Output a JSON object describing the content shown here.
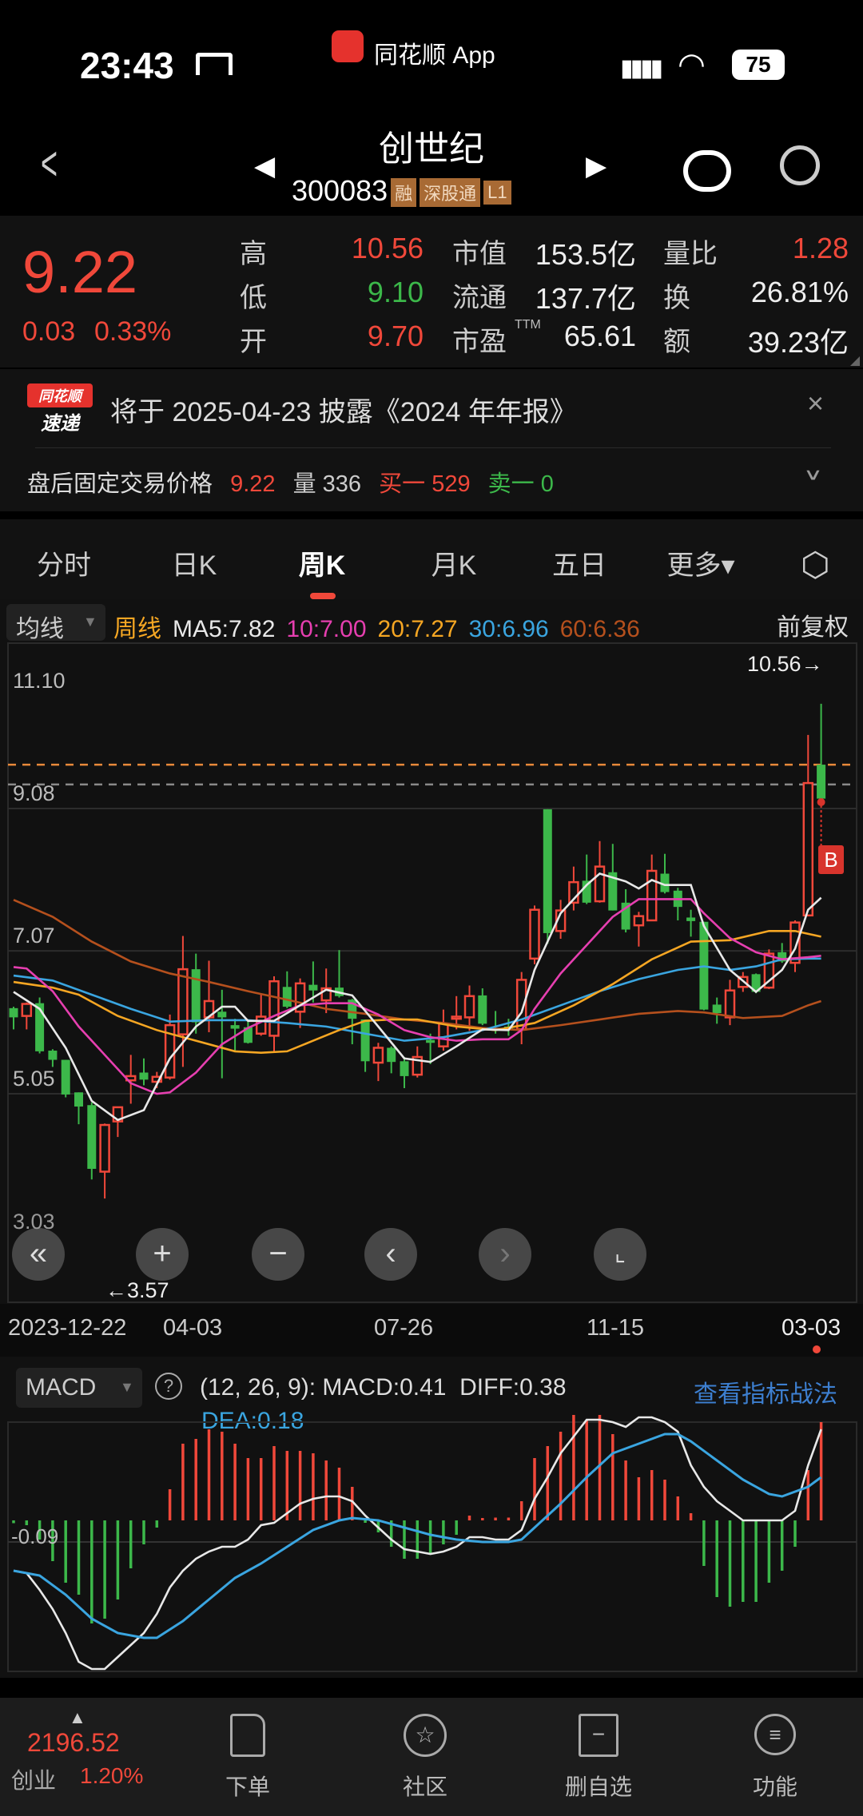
{
  "status_bar": {
    "time": "23:43",
    "app_name": "同花顺 App",
    "battery": "75"
  },
  "header": {
    "stock_name": "创世纪",
    "stock_code": "300083",
    "badges": [
      "融",
      "深股通",
      "L1"
    ]
  },
  "quote": {
    "price": "9.22",
    "change": "0.03",
    "change_pct": "0.33%",
    "high_label": "高",
    "high": "10.56",
    "low_label": "低",
    "low": "9.10",
    "open_label": "开",
    "open": "9.70",
    "mcap_label": "市值",
    "mcap": "153.5亿",
    "float_label": "流通",
    "float": "137.7亿",
    "pe_label": "市盈",
    "pe_sup": "TTM",
    "pe": "65.61",
    "vol_ratio_label": "量比",
    "vol_ratio": "1.28",
    "turnover_label": "换",
    "turnover": "26.81%",
    "amount_label": "额",
    "amount": "39.23亿"
  },
  "notice": {
    "logo_top": "同花顺",
    "logo_bottom": "速递",
    "text": "将于 2025-04-23 披露《2024 年年报》"
  },
  "after_hours": {
    "label": "盘后固定交易价格",
    "price": "9.22",
    "vol_label": "量",
    "vol": "336",
    "buy_label": "买一",
    "buy": "529",
    "sell_label": "卖一",
    "sell": "0"
  },
  "tabs": [
    {
      "label": "分时"
    },
    {
      "label": "日K"
    },
    {
      "label": "周K",
      "active": true
    },
    {
      "label": "月K"
    },
    {
      "label": "五日"
    },
    {
      "label": "更多▾"
    }
  ],
  "ma_legend": {
    "selector": "均线",
    "period": "周线",
    "ma5": "MA5:7.82",
    "ma10": "10:7.00",
    "ma20": "20:7.27",
    "ma30": "30:6.96",
    "ma60": "60:6.36",
    "adjust": "前复权"
  },
  "colors": {
    "up": "#f0483a",
    "down": "#3cb84a",
    "ma5": "#e8e8e8",
    "ma10": "#e63fb0",
    "ma20": "#f5a623",
    "ma30": "#3aa5e0",
    "ma60": "#b5501d",
    "link": "#3d7fd0"
  },
  "chart_data": {
    "type": "candlestick",
    "period": "weekly",
    "y_ticks": [
      "11.10",
      "9.08",
      "7.07",
      "5.05",
      "3.03"
    ],
    "ylim": [
      3.03,
      11.1
    ],
    "x_ticks": [
      "2023-12-22",
      "04-03",
      "07-26",
      "11-15",
      "03-03"
    ],
    "max_label": "10.56→",
    "min_label": "←3.57",
    "signal_marker": "B",
    "reference_lines": [
      9.7,
      9.42
    ],
    "candles": [
      [
        6.26,
        6.28,
        5.96,
        6.13
      ],
      [
        6.15,
        6.34,
        5.96,
        6.32
      ],
      [
        6.33,
        6.41,
        5.62,
        5.65
      ],
      [
        5.66,
        5.68,
        5.43,
        5.53
      ],
      [
        5.53,
        5.53,
        5.0,
        5.04
      ],
      [
        5.07,
        5.07,
        4.62,
        4.87
      ],
      [
        4.89,
        4.93,
        3.84,
        3.99
      ],
      [
        3.95,
        4.63,
        3.57,
        4.61
      ],
      [
        4.66,
        4.87,
        4.44,
        4.86
      ],
      [
        5.24,
        5.6,
        4.91,
        5.3
      ],
      [
        5.35,
        5.55,
        5.17,
        5.25
      ],
      [
        5.22,
        5.36,
        5.13,
        5.29
      ],
      [
        5.28,
        6.17,
        5.25,
        6.02
      ],
      [
        5.89,
        7.28,
        5.43,
        6.81
      ],
      [
        6.81,
        7.03,
        5.9,
        6.06
      ],
      [
        6.13,
        6.93,
        5.92,
        6.36
      ],
      [
        6.21,
        6.52,
        5.27,
        6.13
      ],
      [
        6.02,
        6.11,
        5.66,
        5.97
      ],
      [
        5.99,
        6.1,
        5.76,
        5.77
      ],
      [
        5.9,
        6.45,
        5.87,
        6.14
      ],
      [
        5.87,
        6.71,
        5.64,
        6.64
      ],
      [
        6.56,
        6.78,
        6.26,
        6.28
      ],
      [
        6.21,
        6.68,
        5.98,
        6.61
      ],
      [
        6.59,
        6.92,
        6.34,
        6.51
      ],
      [
        6.37,
        6.82,
        6.19,
        6.54
      ],
      [
        6.55,
        7.08,
        6.41,
        6.43
      ],
      [
        6.38,
        6.39,
        5.75,
        6.11
      ],
      [
        6.1,
        6.1,
        5.36,
        5.51
      ],
      [
        5.49,
        5.77,
        5.23,
        5.7
      ],
      [
        5.7,
        5.72,
        5.34,
        5.5
      ],
      [
        5.51,
        5.57,
        5.13,
        5.3
      ],
      [
        5.32,
        5.72,
        5.28,
        5.57
      ],
      [
        5.81,
        5.9,
        5.47,
        5.77
      ],
      [
        5.72,
        6.24,
        5.66,
        6.04
      ],
      [
        6.11,
        6.43,
        5.96,
        6.14
      ],
      [
        6.13,
        6.58,
        5.94,
        6.43
      ],
      [
        6.44,
        6.54,
        6.02,
        6.04
      ],
      [
        5.97,
        6.22,
        5.9,
        5.96
      ],
      [
        6.0,
        6.11,
        5.87,
        5.96
      ],
      [
        5.96,
        6.77,
        5.75,
        6.66
      ],
      [
        6.96,
        7.71,
        6.88,
        7.65
      ],
      [
        9.07,
        9.07,
        7.17,
        7.32
      ],
      [
        7.35,
        7.79,
        7.24,
        7.64
      ],
      [
        7.75,
        8.26,
        7.64,
        8.04
      ],
      [
        8.06,
        8.43,
        7.73,
        7.75
      ],
      [
        7.77,
        8.62,
        7.75,
        8.26
      ],
      [
        8.18,
        8.58,
        7.64,
        7.64
      ],
      [
        7.75,
        7.94,
        7.33,
        7.37
      ],
      [
        7.43,
        7.62,
        7.13,
        7.56
      ],
      [
        7.5,
        8.43,
        7.49,
        8.2
      ],
      [
        8.16,
        8.44,
        7.88,
        7.9
      ],
      [
        7.92,
        7.96,
        7.5,
        7.69
      ],
      [
        7.54,
        7.65,
        7.27,
        7.49
      ],
      [
        7.48,
        7.48,
        6.23,
        6.24
      ],
      [
        6.31,
        6.41,
        6.04,
        6.19
      ],
      [
        6.13,
        6.66,
        6.02,
        6.51
      ],
      [
        6.56,
        6.77,
        6.49,
        6.7
      ],
      [
        6.74,
        6.75,
        6.47,
        6.49
      ],
      [
        6.55,
        7.09,
        6.53,
        7.03
      ],
      [
        7.05,
        7.18,
        6.9,
        6.92
      ],
      [
        6.9,
        7.5,
        6.77,
        7.47
      ],
      [
        7.57,
        10.12,
        7.57,
        9.44
      ],
      [
        9.7,
        10.56,
        9.1,
        9.22
      ]
    ],
    "ma_lines": {
      "ma5": [
        [
          0,
          6.49
        ],
        [
          2,
          6.25
        ],
        [
          4,
          5.7
        ],
        [
          6,
          4.95
        ],
        [
          8,
          4.68
        ],
        [
          10,
          4.82
        ],
        [
          12,
          5.55
        ],
        [
          14,
          6.0
        ],
        [
          16,
          6.28
        ],
        [
          17,
          6.28
        ],
        [
          18,
          6.08
        ],
        [
          20,
          6.08
        ],
        [
          22,
          6.3
        ],
        [
          24,
          6.52
        ],
        [
          26,
          6.44
        ],
        [
          28,
          6.0
        ],
        [
          30,
          5.55
        ],
        [
          32,
          5.5
        ],
        [
          34,
          5.72
        ],
        [
          36,
          5.96
        ],
        [
          38,
          5.95
        ],
        [
          39,
          6.2
        ],
        [
          40,
          6.8
        ],
        [
          42,
          7.6
        ],
        [
          44,
          8.0
        ],
        [
          45,
          8.16
        ],
        [
          47,
          8.05
        ],
        [
          48,
          7.95
        ],
        [
          49,
          8.07
        ],
        [
          50,
          8.0
        ],
        [
          52,
          8.0
        ],
        [
          53,
          7.42
        ],
        [
          55,
          6.8
        ],
        [
          57,
          6.49
        ],
        [
          59,
          6.8
        ],
        [
          60,
          7.1
        ],
        [
          61,
          7.65
        ],
        [
          62,
          7.82
        ]
      ],
      "ma10": [
        [
          0,
          6.84
        ],
        [
          1,
          6.82
        ],
        [
          3,
          6.5
        ],
        [
          5,
          6.0
        ],
        [
          7,
          5.6
        ],
        [
          9,
          5.2
        ],
        [
          11,
          5.05
        ],
        [
          12,
          5.07
        ],
        [
          14,
          5.35
        ],
        [
          16,
          5.75
        ],
        [
          18,
          5.98
        ],
        [
          20,
          6.15
        ],
        [
          22,
          6.3
        ],
        [
          24,
          6.33
        ],
        [
          26,
          6.33
        ],
        [
          28,
          6.17
        ],
        [
          30,
          5.95
        ],
        [
          32,
          5.85
        ],
        [
          34,
          5.8
        ],
        [
          36,
          5.82
        ],
        [
          38,
          5.82
        ],
        [
          39,
          5.95
        ],
        [
          40,
          6.25
        ],
        [
          42,
          6.75
        ],
        [
          44,
          7.15
        ],
        [
          46,
          7.55
        ],
        [
          48,
          7.8
        ],
        [
          50,
          7.8
        ],
        [
          52,
          7.8
        ],
        [
          53,
          7.6
        ],
        [
          55,
          7.25
        ],
        [
          57,
          7.05
        ],
        [
          59,
          6.95
        ],
        [
          61,
          6.98
        ],
        [
          62,
          7.0
        ]
      ],
      "ma20": [
        [
          0,
          6.63
        ],
        [
          3,
          6.55
        ],
        [
          5,
          6.45
        ],
        [
          8,
          6.15
        ],
        [
          11,
          5.95
        ],
        [
          14,
          5.8
        ],
        [
          17,
          5.65
        ],
        [
          19,
          5.63
        ],
        [
          21,
          5.65
        ],
        [
          23,
          5.8
        ],
        [
          25,
          5.95
        ],
        [
          27,
          6.08
        ],
        [
          29,
          6.1
        ],
        [
          31,
          6.1
        ],
        [
          34,
          6.0
        ],
        [
          37,
          5.95
        ],
        [
          40,
          6.05
        ],
        [
          43,
          6.3
        ],
        [
          46,
          6.6
        ],
        [
          49,
          6.95
        ],
        [
          52,
          7.2
        ],
        [
          55,
          7.22
        ],
        [
          58,
          7.35
        ],
        [
          60,
          7.35
        ],
        [
          62,
          7.27
        ]
      ],
      "ma30": [
        [
          0,
          6.72
        ],
        [
          3,
          6.65
        ],
        [
          6,
          6.45
        ],
        [
          9,
          6.25
        ],
        [
          12,
          6.07
        ],
        [
          15,
          6.09
        ],
        [
          18,
          6.09
        ],
        [
          21,
          6.05
        ],
        [
          24,
          6.0
        ],
        [
          27,
          5.9
        ],
        [
          30,
          5.8
        ],
        [
          33,
          5.85
        ],
        [
          36,
          5.95
        ],
        [
          39,
          6.1
        ],
        [
          42,
          6.3
        ],
        [
          45,
          6.5
        ],
        [
          48,
          6.67
        ],
        [
          51,
          6.8
        ],
        [
          53,
          6.85
        ],
        [
          55,
          6.8
        ],
        [
          57,
          6.85
        ],
        [
          59,
          6.95
        ],
        [
          61,
          6.96
        ],
        [
          62,
          6.96
        ]
      ],
      "ma60": [
        [
          0,
          7.79
        ],
        [
          3,
          7.55
        ],
        [
          6,
          7.2
        ],
        [
          9,
          6.92
        ],
        [
          12,
          6.75
        ],
        [
          15,
          6.63
        ],
        [
          18,
          6.5
        ],
        [
          21,
          6.38
        ],
        [
          24,
          6.25
        ],
        [
          27,
          6.18
        ],
        [
          30,
          6.1
        ],
        [
          33,
          6.05
        ],
        [
          36,
          5.98
        ],
        [
          39,
          5.95
        ],
        [
          42,
          6.02
        ],
        [
          45,
          6.1
        ],
        [
          48,
          6.18
        ],
        [
          51,
          6.22
        ],
        [
          53,
          6.2
        ],
        [
          56,
          6.12
        ],
        [
          59,
          6.15
        ],
        [
          61,
          6.3
        ],
        [
          62,
          6.36
        ]
      ]
    }
  },
  "macd": {
    "selector": "MACD",
    "params": "(12, 26, 9): MACD:0.41  DIFF:0.38",
    "dea_label": "DEA:0.18",
    "y_tick": "-0.09",
    "link": "查看指标战法",
    "chart_data": {
      "type": "bar+line",
      "histogram": [
        -0.005,
        -0.02,
        -0.08,
        -0.17,
        -0.26,
        -0.31,
        -0.43,
        -0.41,
        -0.33,
        -0.2,
        -0.1,
        -0.03,
        0.13,
        0.32,
        0.34,
        0.38,
        0.37,
        0.32,
        0.26,
        0.26,
        0.31,
        0.29,
        0.29,
        0.28,
        0.25,
        0.22,
        0.14,
        -0.01,
        -0.05,
        -0.11,
        -0.16,
        -0.16,
        -0.14,
        -0.1,
        -0.06,
        0.02,
        0.01,
        0.005,
        0.005,
        0.08,
        0.26,
        0.31,
        0.37,
        0.44,
        0.42,
        0.44,
        0.36,
        0.25,
        0.18,
        0.21,
        0.17,
        0.1,
        0.03,
        -0.19,
        -0.32,
        -0.36,
        -0.34,
        -0.34,
        -0.26,
        -0.21,
        -0.11,
        0.21,
        0.41
      ],
      "diff": [
        -0.21,
        -0.22,
        -0.29,
        -0.37,
        -0.47,
        -0.59,
        -0.62,
        -0.62,
        -0.57,
        -0.52,
        -0.47,
        -0.39,
        -0.28,
        -0.21,
        -0.16,
        -0.13,
        -0.11,
        -0.11,
        -0.08,
        -0.02,
        -0.01,
        0.03,
        0.07,
        0.09,
        0.1,
        0.1,
        0.08,
        0.02,
        -0.03,
        -0.08,
        -0.12,
        -0.13,
        -0.14,
        -0.13,
        -0.11,
        -0.07,
        -0.07,
        -0.08,
        -0.08,
        -0.04,
        0.09,
        0.18,
        0.28,
        0.35,
        0.42,
        0.42,
        0.41,
        0.39,
        0.43,
        0.43,
        0.41,
        0.37,
        0.23,
        0.14,
        0.08,
        0.04,
        0.0,
        0.0,
        0.0,
        0.0,
        0.04,
        0.23,
        0.38
      ],
      "dea": [
        [
          0,
          -0.21
        ],
        [
          2,
          -0.23
        ],
        [
          4,
          -0.31
        ],
        [
          6,
          -0.41
        ],
        [
          8,
          -0.47
        ],
        [
          10,
          -0.49
        ],
        [
          11,
          -0.49
        ],
        [
          13,
          -0.42
        ],
        [
          15,
          -0.33
        ],
        [
          17,
          -0.24
        ],
        [
          19,
          -0.18
        ],
        [
          21,
          -0.11
        ],
        [
          23,
          -0.04
        ],
        [
          25,
          0
        ],
        [
          26,
          0.01
        ],
        [
          28,
          0.0
        ],
        [
          30,
          -0.03
        ],
        [
          32,
          -0.06
        ],
        [
          34,
          -0.08
        ],
        [
          36,
          -0.09
        ],
        [
          38,
          -0.09
        ],
        [
          39,
          -0.08
        ],
        [
          40,
          -0.03
        ],
        [
          42,
          0.07
        ],
        [
          44,
          0.18
        ],
        [
          46,
          0.28
        ],
        [
          48,
          0.32
        ],
        [
          50,
          0.36
        ],
        [
          51,
          0.36
        ],
        [
          52,
          0.33
        ],
        [
          54,
          0.25
        ],
        [
          56,
          0.17
        ],
        [
          58,
          0.11
        ],
        [
          59,
          0.1
        ],
        [
          60,
          0.12
        ],
        [
          61,
          0.14
        ],
        [
          62,
          0.18
        ]
      ]
    }
  },
  "bottom_nav": {
    "index_value": "2196.52",
    "index_name": "创业",
    "index_change": "1.20%",
    "items": [
      {
        "label": "下单"
      },
      {
        "label": "社区"
      },
      {
        "label": "删自选"
      },
      {
        "label": "功能"
      }
    ]
  }
}
